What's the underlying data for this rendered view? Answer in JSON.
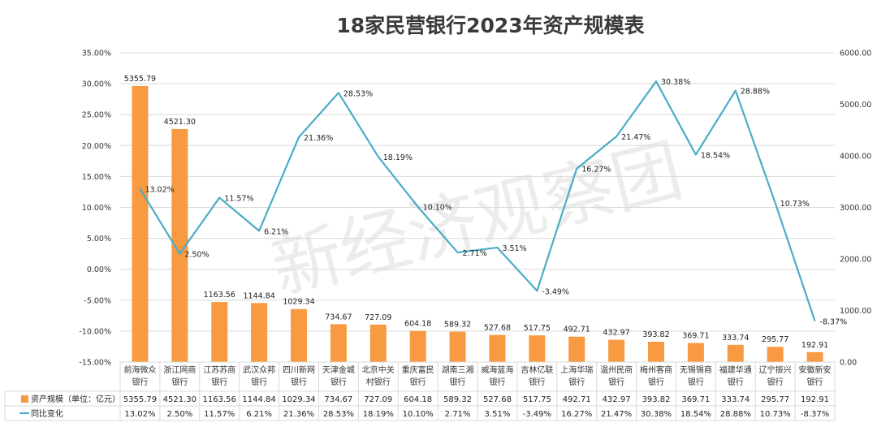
{
  "chart_data": {
    "type": "bar",
    "title": "18家民营银行2023年资产规模表",
    "watermark": "新经济观察团",
    "categories": [
      "前海微众银行",
      "浙江网商银行",
      "江苏苏商银行",
      "武汉众邦银行",
      "四川新网银行",
      "天津金城银行",
      "北京中关村银行",
      "重庆富民银行",
      "湖南三湘银行",
      "威海蓝海银行",
      "吉林亿联银行",
      "上海华瑞银行",
      "温州民商银行",
      "梅州客商银行",
      "无锡锡商银行",
      "福建华通银行",
      "辽宁振兴银行",
      "安徽新安银行"
    ],
    "category_lines": [
      [
        "前海微众",
        "银行"
      ],
      [
        "浙江网商",
        "银行"
      ],
      [
        "江苏苏商",
        "银行"
      ],
      [
        "武汉众邦",
        "银行"
      ],
      [
        "四川新网",
        "银行"
      ],
      [
        "天津金城",
        "银行"
      ],
      [
        "北京中关",
        "村银行"
      ],
      [
        "重庆富民",
        "银行"
      ],
      [
        "湖南三湘",
        "银行"
      ],
      [
        "威海蓝海",
        "银行"
      ],
      [
        "吉林亿联",
        "银行"
      ],
      [
        "上海华瑞",
        "银行"
      ],
      [
        "温州民商",
        "银行"
      ],
      [
        "梅州客商",
        "银行"
      ],
      [
        "无锡锡商",
        "银行"
      ],
      [
        "福建华通",
        "银行"
      ],
      [
        "辽宁振兴",
        "银行"
      ],
      [
        "安徽新安",
        "银行"
      ]
    ],
    "series": [
      {
        "name": "资产规模（单位：亿元）",
        "type": "bar",
        "axis": "right",
        "color": "#f79a42",
        "values": [
          5355.79,
          4521.3,
          1163.56,
          1144.84,
          1029.34,
          734.67,
          727.09,
          604.18,
          589.32,
          527.68,
          517.75,
          492.71,
          432.97,
          393.82,
          369.71,
          333.74,
          295.77,
          192.91
        ],
        "labels": [
          "5355.79",
          "4521.30",
          "1163.56",
          "1144.84",
          "1029.34",
          "734.67",
          "727.09",
          "604.18",
          "589.32",
          "527.68",
          "517.75",
          "492.71",
          "432.97",
          "393.82",
          "369.71",
          "333.74",
          "295.77",
          "192.91"
        ]
      },
      {
        "name": "同比变化",
        "type": "line",
        "axis": "left",
        "color": "#4bacc6",
        "values": [
          13.02,
          2.5,
          11.57,
          6.21,
          21.36,
          28.53,
          18.19,
          10.1,
          2.71,
          3.51,
          -3.49,
          16.27,
          21.47,
          30.38,
          18.54,
          28.88,
          10.73,
          -8.37
        ],
        "labels": [
          "13.02%",
          "2.50%",
          "11.57%",
          "6.21%",
          "21.36%",
          "28.53%",
          "18.19%",
          "10.10%",
          "2.71%",
          "3.51%",
          "-3.49%",
          "16.27%",
          "21.47%",
          "30.38%",
          "18.54%",
          "28.88%",
          "10.73%",
          "-8.37%"
        ]
      }
    ],
    "y_left": {
      "range": [
        -15,
        35
      ],
      "ticks": [
        "-15.00%",
        "-10.00%",
        "-5.00%",
        "0.00%",
        "5.00%",
        "10.00%",
        "15.00%",
        "20.00%",
        "25.00%",
        "30.00%",
        "35.00%"
      ]
    },
    "y_right": {
      "range": [
        0,
        6000
      ],
      "ticks": [
        "0.00",
        "1000.00",
        "2000.00",
        "3000.00",
        "4000.00",
        "5000.00",
        "6000.00"
      ]
    },
    "grid": true,
    "legend": "data-table"
  }
}
